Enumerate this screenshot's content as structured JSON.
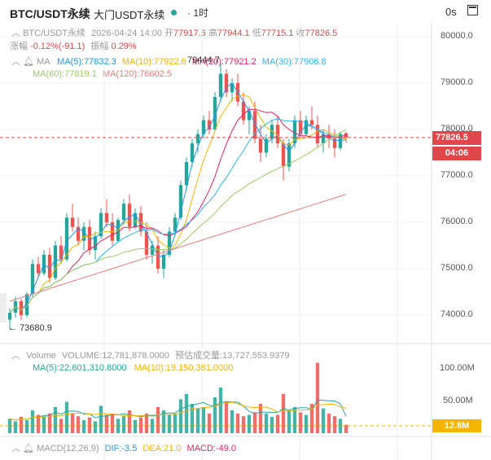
{
  "header": {
    "symbol": "BTC/USDT永续",
    "exchange": "大门USDT永续",
    "separator": "·",
    "interval": "1时",
    "timer": "0s"
  },
  "ohlc": {
    "symbol": "BTC/USDT永续",
    "date": "2026-04-24 14:00",
    "open_label": "开",
    "open": "77917.6",
    "high_label": "高",
    "high": "77944.1",
    "low_label": "低",
    "low": "77715.1",
    "close_label": "收",
    "close": "77826.5",
    "change_label": "涨幅",
    "change": "-0.12%(-91.1)",
    "amp_label": "振幅",
    "amp": "0.29%"
  },
  "ma": {
    "label": "MA",
    "ma5": "MA(5):77832.3",
    "ma10": "MA(10):77922.6",
    "ma20": "MA(20):77921.2",
    "ma30": "MA(30):77906.8",
    "ma60": "MA(60):77819.1",
    "ma120": "MA(120):76602.5",
    "colors": {
      "ma5": "#2196f3",
      "ma10": "#f5b400",
      "ma20": "#e91e63",
      "ma30": "#29b6f6",
      "ma60": "#9ccc65",
      "ma120": "#ef7a7a"
    }
  },
  "price_axis": {
    "ticks": [
      "80000.0",
      "79000.0",
      "78000.0",
      "77000.0",
      "76000.0",
      "75000.0",
      "74000.0"
    ],
    "current_price": "77826.5",
    "countdown": "04:06",
    "high_mark": "79444.7",
    "low_mark": "73680.9"
  },
  "volume": {
    "label": "Volume",
    "volume_text": "VOLUME:12,781,878.0000",
    "est_text": "预估成交量:13,727,553.9379",
    "ma5": "MA(5):22,601,310.8000",
    "ma10": "MA(10):19,150,361.0000",
    "ticks": [
      "100.00M",
      "50.00M"
    ],
    "current_tag": "12.8M"
  },
  "macd": {
    "label": "MACD(12,26,9)",
    "dif": "DIF:-3.5",
    "dea": "DEA:21.0",
    "macd": "MACD:-49.0"
  },
  "colors": {
    "up": "#26a69a",
    "down": "#ef5350",
    "accent": "#e0474c"
  },
  "chart_data": {
    "type": "candlestick",
    "series_note": "BTC/USDT 1h",
    "ylim": [
      73600,
      80200
    ],
    "volume_ylim": [
      0,
      112
    ],
    "candles": [
      [
        73900,
        74150,
        73700,
        74050,
        22
      ],
      [
        74050,
        74400,
        73950,
        74300,
        18
      ],
      [
        74300,
        74350,
        73900,
        74000,
        25
      ],
      [
        74000,
        74500,
        73950,
        74450,
        20
      ],
      [
        74450,
        75200,
        74400,
        75100,
        35
      ],
      [
        75100,
        75250,
        74800,
        74900,
        28
      ],
      [
        74900,
        75400,
        74850,
        75300,
        26
      ],
      [
        75300,
        75450,
        74700,
        74800,
        30
      ],
      [
        74800,
        75600,
        74750,
        75500,
        40
      ],
      [
        75500,
        75700,
        75100,
        75200,
        22
      ],
      [
        75200,
        76200,
        75150,
        76100,
        48
      ],
      [
        76100,
        76400,
        75800,
        75900,
        30
      ],
      [
        75900,
        76100,
        75500,
        75600,
        26
      ],
      [
        75600,
        76000,
        75400,
        75900,
        20
      ],
      [
        75900,
        76050,
        75300,
        75400,
        24
      ],
      [
        75400,
        75800,
        75200,
        75700,
        18
      ],
      [
        75700,
        76300,
        75650,
        76200,
        42
      ],
      [
        76200,
        76500,
        75900,
        76000,
        28
      ],
      [
        76000,
        76200,
        75500,
        75600,
        30
      ],
      [
        75600,
        76100,
        75550,
        76050,
        22
      ],
      [
        76050,
        76500,
        75950,
        76400,
        26
      ],
      [
        76400,
        76600,
        75800,
        75900,
        35
      ],
      [
        75900,
        76300,
        75850,
        76200,
        20
      ],
      [
        76200,
        76350,
        75700,
        75800,
        24
      ],
      [
        75800,
        76000,
        75200,
        75300,
        30
      ],
      [
        75300,
        75600,
        75100,
        75500,
        22
      ],
      [
        75500,
        75700,
        74900,
        75000,
        40
      ],
      [
        75000,
        75400,
        74800,
        75300,
        35
      ],
      [
        75300,
        75900,
        75250,
        75800,
        28
      ],
      [
        75800,
        76200,
        75700,
        76100,
        30
      ],
      [
        76100,
        76900,
        76050,
        76800,
        52
      ],
      [
        76800,
        77400,
        76700,
        77300,
        60
      ],
      [
        77300,
        77800,
        77200,
        77700,
        45
      ],
      [
        77700,
        78000,
        77500,
        77900,
        38
      ],
      [
        77900,
        78300,
        77800,
        78200,
        40
      ],
      [
        78200,
        78400,
        77900,
        78000,
        30
      ],
      [
        78000,
        78800,
        77950,
        78700,
        55
      ],
      [
        78700,
        79444.7,
        78600,
        79200,
        70
      ],
      [
        79200,
        79300,
        78700,
        78800,
        48
      ],
      [
        78800,
        79100,
        78600,
        79000,
        35
      ],
      [
        79000,
        79200,
        78500,
        78600,
        30
      ],
      [
        78600,
        78800,
        78100,
        78200,
        26
      ],
      [
        78200,
        78500,
        77900,
        78400,
        28
      ],
      [
        78400,
        78600,
        77700,
        77800,
        32
      ],
      [
        77800,
        78100,
        77300,
        77500,
        45
      ],
      [
        77500,
        77900,
        77400,
        77800,
        30
      ],
      [
        77800,
        78200,
        77700,
        78100,
        25
      ],
      [
        78100,
        78300,
        77600,
        77700,
        28
      ],
      [
        77700,
        77800,
        76900,
        77200,
        60
      ],
      [
        77200,
        77800,
        77100,
        77700,
        35
      ],
      [
        77700,
        78300,
        77600,
        78200,
        40
      ],
      [
        78200,
        78400,
        77800,
        77900,
        32
      ],
      [
        77900,
        78300,
        77850,
        78200,
        28
      ],
      [
        78200,
        78500,
        78000,
        78100,
        45
      ],
      [
        78100,
        78300,
        77600,
        77700,
        108
      ],
      [
        77700,
        78000,
        77500,
        77900,
        38
      ],
      [
        77900,
        78100,
        77600,
        77800,
        30
      ],
      [
        77800,
        78000,
        77400,
        77600,
        26
      ],
      [
        77600,
        77950,
        77550,
        77900,
        22
      ],
      [
        77917.6,
        77944.1,
        77715.1,
        77826.5,
        12.8
      ]
    ]
  }
}
